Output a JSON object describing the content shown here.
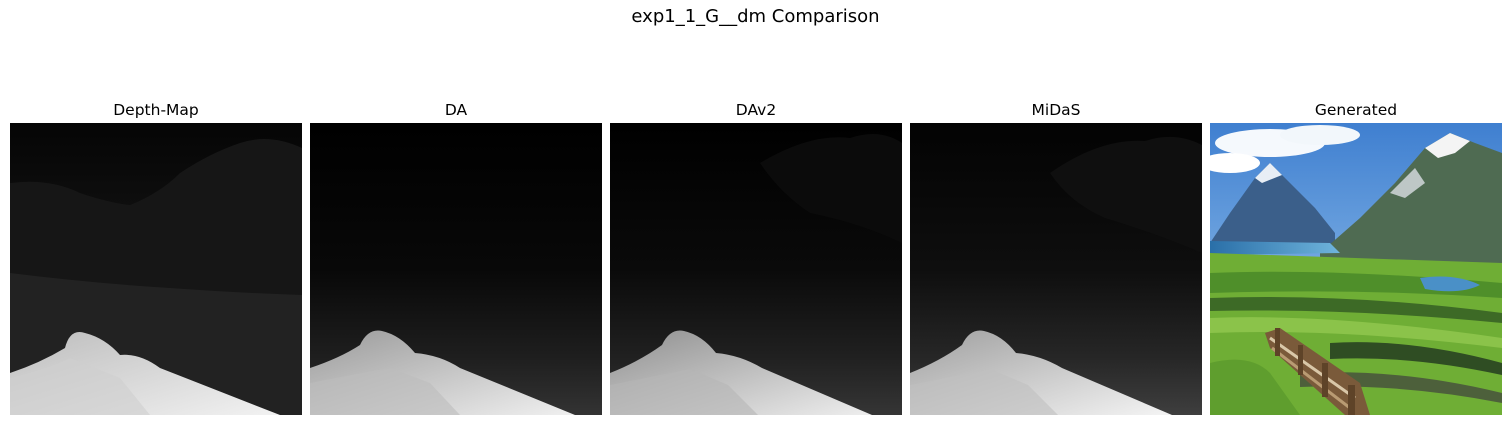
{
  "figure": {
    "title": "exp1_1_G__dm Comparison"
  },
  "panels": [
    {
      "title": "Depth-Map",
      "image": "depth-map-image"
    },
    {
      "title": "DA",
      "image": "depth-anything-image"
    },
    {
      "title": "DAv2",
      "image": "depth-anything-v2-image"
    },
    {
      "title": "MiDaS",
      "image": "midas-image"
    },
    {
      "title": "Generated",
      "image": "generated-mountain-valley-photo"
    }
  ]
}
